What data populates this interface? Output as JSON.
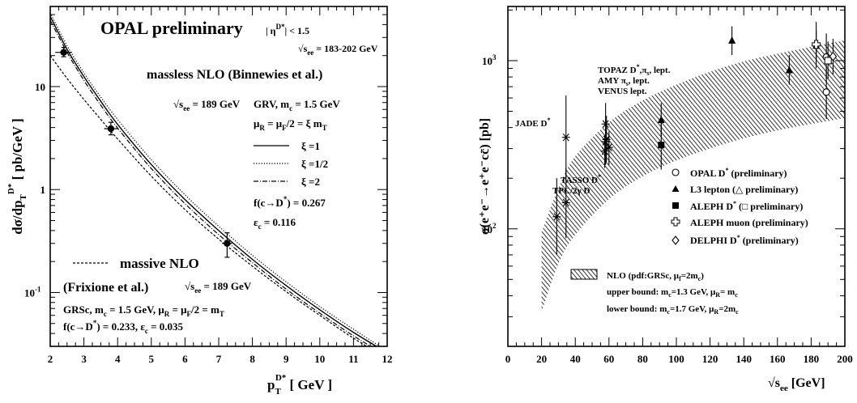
{
  "chart_data": [
    {
      "type": "line",
      "yscale": "log",
      "xlim": [
        2,
        12
      ],
      "ylim": [
        0.03,
        60
      ],
      "xticks": [
        2,
        3,
        4,
        5,
        6,
        7,
        8,
        9,
        10,
        11,
        12
      ],
      "yticks": [
        {
          "value": 0.1,
          "base": "10",
          "exp": "-1"
        },
        {
          "value": 1,
          "base": "1",
          "exp": ""
        },
        {
          "value": 10,
          "base": "10",
          "exp": ""
        }
      ],
      "xlabel": {
        "main": "p",
        "sub": "T",
        "sup": "D*",
        "unit": "[ GeV ]"
      },
      "ylabel": {
        "main": "dσ/dp",
        "sub": "T",
        "sup": "D*",
        "unit": "[ pb/GeV ]"
      },
      "title": "OPAL preliminary",
      "eta_cut": {
        "main": "| η",
        "sup": "D*",
        "tail": "| < 1.5"
      },
      "sqrt_s_range": {
        "pre": "√s",
        "sub": "ee",
        "tail": " = 183-202 GeV"
      },
      "massless_title": "massless NLO (Binnewies et al.)",
      "massless_sqrt": {
        "pre": "√s",
        "sub": "ee",
        "tail": " = 189 GeV"
      },
      "massless_params": [
        "GRV, m",
        "c",
        " = 1.5 GeV"
      ],
      "massless_scale": [
        "μ",
        "R",
        " = μ",
        "F",
        "/2 = ξ m",
        "T"
      ],
      "legend": [
        {
          "label": "ξ =1",
          "style": "solid"
        },
        {
          "label": "ξ =1/2",
          "style": "dotted"
        },
        {
          "label": "ξ =2",
          "style": "dashdot"
        }
      ],
      "frag_massless": {
        "pre": "f(c→D",
        "sup": "*",
        "tail": ") = 0.267"
      },
      "eps_massless": {
        "pre": "ε",
        "sub": "c",
        "tail": " = 0.116"
      },
      "massive_title": "massive NLO",
      "massive_author": "(Frixione et al.)",
      "massive_sqrt": {
        "pre": "√s",
        "sub": "ee",
        "tail": " = 189 GeV"
      },
      "massive_params": "GRSc,  m_c = 1.5 GeV,  μ_R = μ_F/2 = m_T",
      "massive_params_parts": [
        "GRSc,  m",
        "c",
        " = 1.5 GeV,  μ",
        "R",
        " = μ",
        "F",
        "/2 = m",
        "T"
      ],
      "massive_frag": [
        "f(c→D",
        "*",
        ") = 0.233,  ε",
        "c",
        " = 0.035"
      ],
      "series": [
        {
          "name": "ξ =1",
          "style": "solid",
          "x": [
            2,
            2.5,
            3,
            3.5,
            4,
            5,
            6,
            7,
            8,
            9,
            10,
            11,
            12
          ],
          "y": [
            48,
            23,
            12.5,
            7.2,
            4.3,
            1.75,
            0.8,
            0.4,
            0.21,
            0.117,
            0.068,
            0.041,
            0.026
          ]
        },
        {
          "name": "ξ =1/2",
          "style": "dotted",
          "x": [
            2,
            2.5,
            3,
            3.5,
            4,
            5,
            6,
            7,
            8,
            9,
            10,
            11,
            12
          ],
          "y": [
            52,
            25,
            13.6,
            7.9,
            4.8,
            1.95,
            0.89,
            0.44,
            0.23,
            0.127,
            0.073,
            0.044,
            0.027
          ]
        },
        {
          "name": "ξ =2",
          "style": "dashdot",
          "x": [
            2,
            2.5,
            3,
            3.5,
            4,
            5,
            6,
            7,
            8,
            9,
            10,
            11,
            12
          ],
          "y": [
            44,
            21.5,
            11.5,
            6.6,
            3.95,
            1.6,
            0.73,
            0.365,
            0.195,
            0.108,
            0.063,
            0.038,
            0.024
          ]
        },
        {
          "name": "massive NLO",
          "style": "dashed",
          "x": [
            2,
            2.5,
            3,
            3.5,
            4,
            5,
            6,
            7,
            8,
            9,
            10,
            11,
            12
          ],
          "y": [
            20,
            12,
            7.5,
            4.8,
            3.1,
            1.35,
            0.64,
            0.33,
            0.18,
            0.102,
            0.06,
            0.036,
            0.023
          ]
        }
      ],
      "points": [
        {
          "x": 2.4,
          "y": 21.5,
          "ylo": 19.5,
          "yhi": 24,
          "xlo": 2.15,
          "xhi": 2.65,
          "marker": "filled-circle"
        },
        {
          "x": 3.8,
          "y": 3.9,
          "ylo": 3.4,
          "yhi": 4.5,
          "xlo": 3.6,
          "xhi": 4.0,
          "marker": "filled-circle"
        },
        {
          "x": 7.25,
          "y": 0.3,
          "ylo": 0.22,
          "yhi": 0.38,
          "xlo": 7.1,
          "xhi": 7.4,
          "marker": "filled-circle"
        }
      ]
    },
    {
      "type": "scatter",
      "yscale": "log",
      "xlim": [
        0,
        200
      ],
      "ylim": [
        20,
        2100
      ],
      "xticks": [
        0,
        20,
        40,
        60,
        80,
        100,
        120,
        140,
        160,
        180,
        200
      ],
      "yticks": [
        {
          "value": 100,
          "base": "10",
          "exp": "2"
        },
        {
          "value": 1000,
          "base": "10",
          "exp": "3"
        }
      ],
      "xlabel": {
        "pre": "√s",
        "sub": "ee",
        "tail": " [GeV]"
      },
      "ylabel": "σ(e⁺e⁻→e⁺e⁻cc̄) [pb]",
      "band": {
        "x": [
          20,
          30,
          40,
          60,
          80,
          100,
          120,
          140,
          160,
          180,
          200
        ],
        "upper": [
          95,
          175,
          270,
          430,
          580,
          720,
          860,
          990,
          1100,
          1210,
          1320
        ],
        "lower": [
          32,
          62,
          92,
          150,
          205,
          255,
          300,
          345,
          385,
          420,
          455
        ]
      },
      "experiment_labels": [
        {
          "parts": [
            "JADE D",
            "*"
          ]
        },
        {
          "parts": [
            "TOPAZ D",
            "*",
            ",π",
            "s",
            ", lept."
          ]
        },
        {
          "parts": [
            "AMY π",
            "s",
            ", lept."
          ]
        },
        {
          "parts": [
            "VENUS lept."
          ]
        },
        {
          "parts": [
            "TASSO D",
            "*"
          ]
        },
        {
          "parts": [
            "TPC/2γ D"
          ]
        }
      ],
      "legend": [
        {
          "marker": "open-circle",
          "parts": [
            "OPAL D",
            "*",
            " (preliminary)"
          ]
        },
        {
          "marker": "filled-triangle",
          "parts": [
            "L3 lepton (△  preliminary)"
          ]
        },
        {
          "marker": "filled-square",
          "parts": [
            "ALEPH D",
            "*",
            " (□  preliminary)"
          ]
        },
        {
          "marker": "open-cross",
          "parts": [
            "ALEPH muon (preliminary)"
          ]
        },
        {
          "marker": "open-diamond",
          "parts": [
            "DELPHI D",
            "*",
            " (preliminary)"
          ]
        }
      ],
      "band_legend": {
        "line1": [
          "NLO (pdf:GRSc, μ",
          "f",
          "=2m",
          "c",
          ")"
        ],
        "line2": [
          "upper bound: m",
          "c",
          "=1.3 GeV, μ",
          "R",
          "= m",
          "c"
        ],
        "line3": [
          "lower bound: m",
          "c",
          "=1.7 GeV, μ",
          "R",
          "=2m",
          "c"
        ]
      },
      "points": [
        {
          "exp": "JADE",
          "marker": "asterisk",
          "x": 34.5,
          "y": 350,
          "ylo": 200,
          "yhi": 620
        },
        {
          "exp": "TPC/2γ",
          "marker": "asterisk",
          "x": 29,
          "y": 118,
          "ylo": 70,
          "yhi": 200
        },
        {
          "exp": "TASSO",
          "marker": "asterisk",
          "x": 34.5,
          "y": 143,
          "ylo": 88,
          "yhi": 230
        },
        {
          "exp": "TOPAZ",
          "marker": "asterisk",
          "x": 58,
          "y": 420,
          "ylo": 300,
          "yhi": 560
        },
        {
          "exp": "TOPAZ",
          "marker": "asterisk",
          "x": 58,
          "y": 330,
          "ylo": 240,
          "yhi": 440
        },
        {
          "exp": "AMY",
          "marker": "asterisk",
          "x": 57.5,
          "y": 290,
          "ylo": 230,
          "yhi": 360
        },
        {
          "exp": "VENUS",
          "marker": "asterisk",
          "x": 58.5,
          "y": 340,
          "ylo": 250,
          "yhi": 470
        },
        {
          "exp": "AMY",
          "marker": "asterisk",
          "x": 60,
          "y": 305,
          "ylo": 240,
          "yhi": 380
        },
        {
          "exp": "ALEPH",
          "marker": "filled-square",
          "x": 91,
          "y": 315,
          "ylo": 225,
          "yhi": 430
        },
        {
          "exp": "L3",
          "marker": "filled-triangle",
          "x": 91,
          "y": 445,
          "ylo": 355,
          "yhi": 560
        },
        {
          "exp": "L3",
          "marker": "filled-triangle",
          "x": 133,
          "y": 1320,
          "ylo": 1080,
          "yhi": 1600
        },
        {
          "exp": "L3",
          "marker": "filled-triangle",
          "x": 167,
          "y": 880,
          "ylo": 720,
          "yhi": 1080
        },
        {
          "exp": "L3",
          "marker": "filled-triangle",
          "x": 183,
          "y": 1230,
          "ylo": 1000,
          "yhi": 1500
        },
        {
          "exp": "OPAL",
          "marker": "open-circle",
          "x": 189,
          "y": 650,
          "ylo": 450,
          "yhi": 900
        },
        {
          "exp": "OPAL",
          "marker": "open-circle",
          "x": 189,
          "y": 1050,
          "ylo": 750,
          "yhi": 1450
        },
        {
          "exp": "ALEPH",
          "marker": "open-square",
          "x": 190,
          "y": 1000,
          "ylo": 780,
          "yhi": 1300
        },
        {
          "exp": "ALEPH muon",
          "marker": "open-cross",
          "x": 183,
          "y": 1250,
          "ylo": 900,
          "yhi": 1700
        },
        {
          "exp": "DELPHI",
          "marker": "open-diamond",
          "x": 193,
          "y": 1060,
          "ylo": 830,
          "yhi": 1350
        }
      ]
    }
  ]
}
